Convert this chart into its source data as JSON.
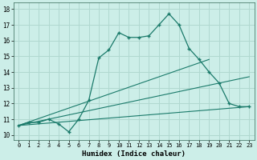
{
  "background_color": "#cceee8",
  "grid_color": "#b0d8d0",
  "line_color": "#1a7a6a",
  "xlabel": "Humidex (Indice chaleur)",
  "xlim": [
    -0.5,
    23.5
  ],
  "ylim": [
    9.7,
    18.4
  ],
  "yticks": [
    10,
    11,
    12,
    13,
    14,
    15,
    16,
    17,
    18
  ],
  "xticks": [
    0,
    1,
    2,
    3,
    4,
    5,
    6,
    7,
    8,
    9,
    10,
    11,
    12,
    13,
    14,
    15,
    16,
    17,
    18,
    19,
    20,
    21,
    22,
    23
  ],
  "main_curve": {
    "x": [
      0,
      1,
      2,
      3,
      4,
      5,
      6,
      7,
      8,
      9,
      10,
      11,
      12,
      13,
      14,
      15,
      16,
      17,
      18,
      19,
      20,
      21,
      22,
      23
    ],
    "y": [
      10.6,
      10.8,
      10.8,
      11.0,
      10.7,
      10.2,
      11.0,
      12.2,
      14.9,
      15.4,
      16.5,
      16.2,
      16.2,
      16.3,
      17.0,
      17.7,
      17.0,
      15.5,
      14.8,
      14.0,
      13.3,
      12.0,
      11.8,
      11.8
    ]
  },
  "line1": {
    "x": [
      0,
      23
    ],
    "y": [
      10.6,
      11.8
    ]
  },
  "line2": {
    "x": [
      0,
      23
    ],
    "y": [
      10.6,
      13.7
    ]
  },
  "line3": {
    "x": [
      0,
      19
    ],
    "y": [
      10.6,
      14.8
    ]
  }
}
